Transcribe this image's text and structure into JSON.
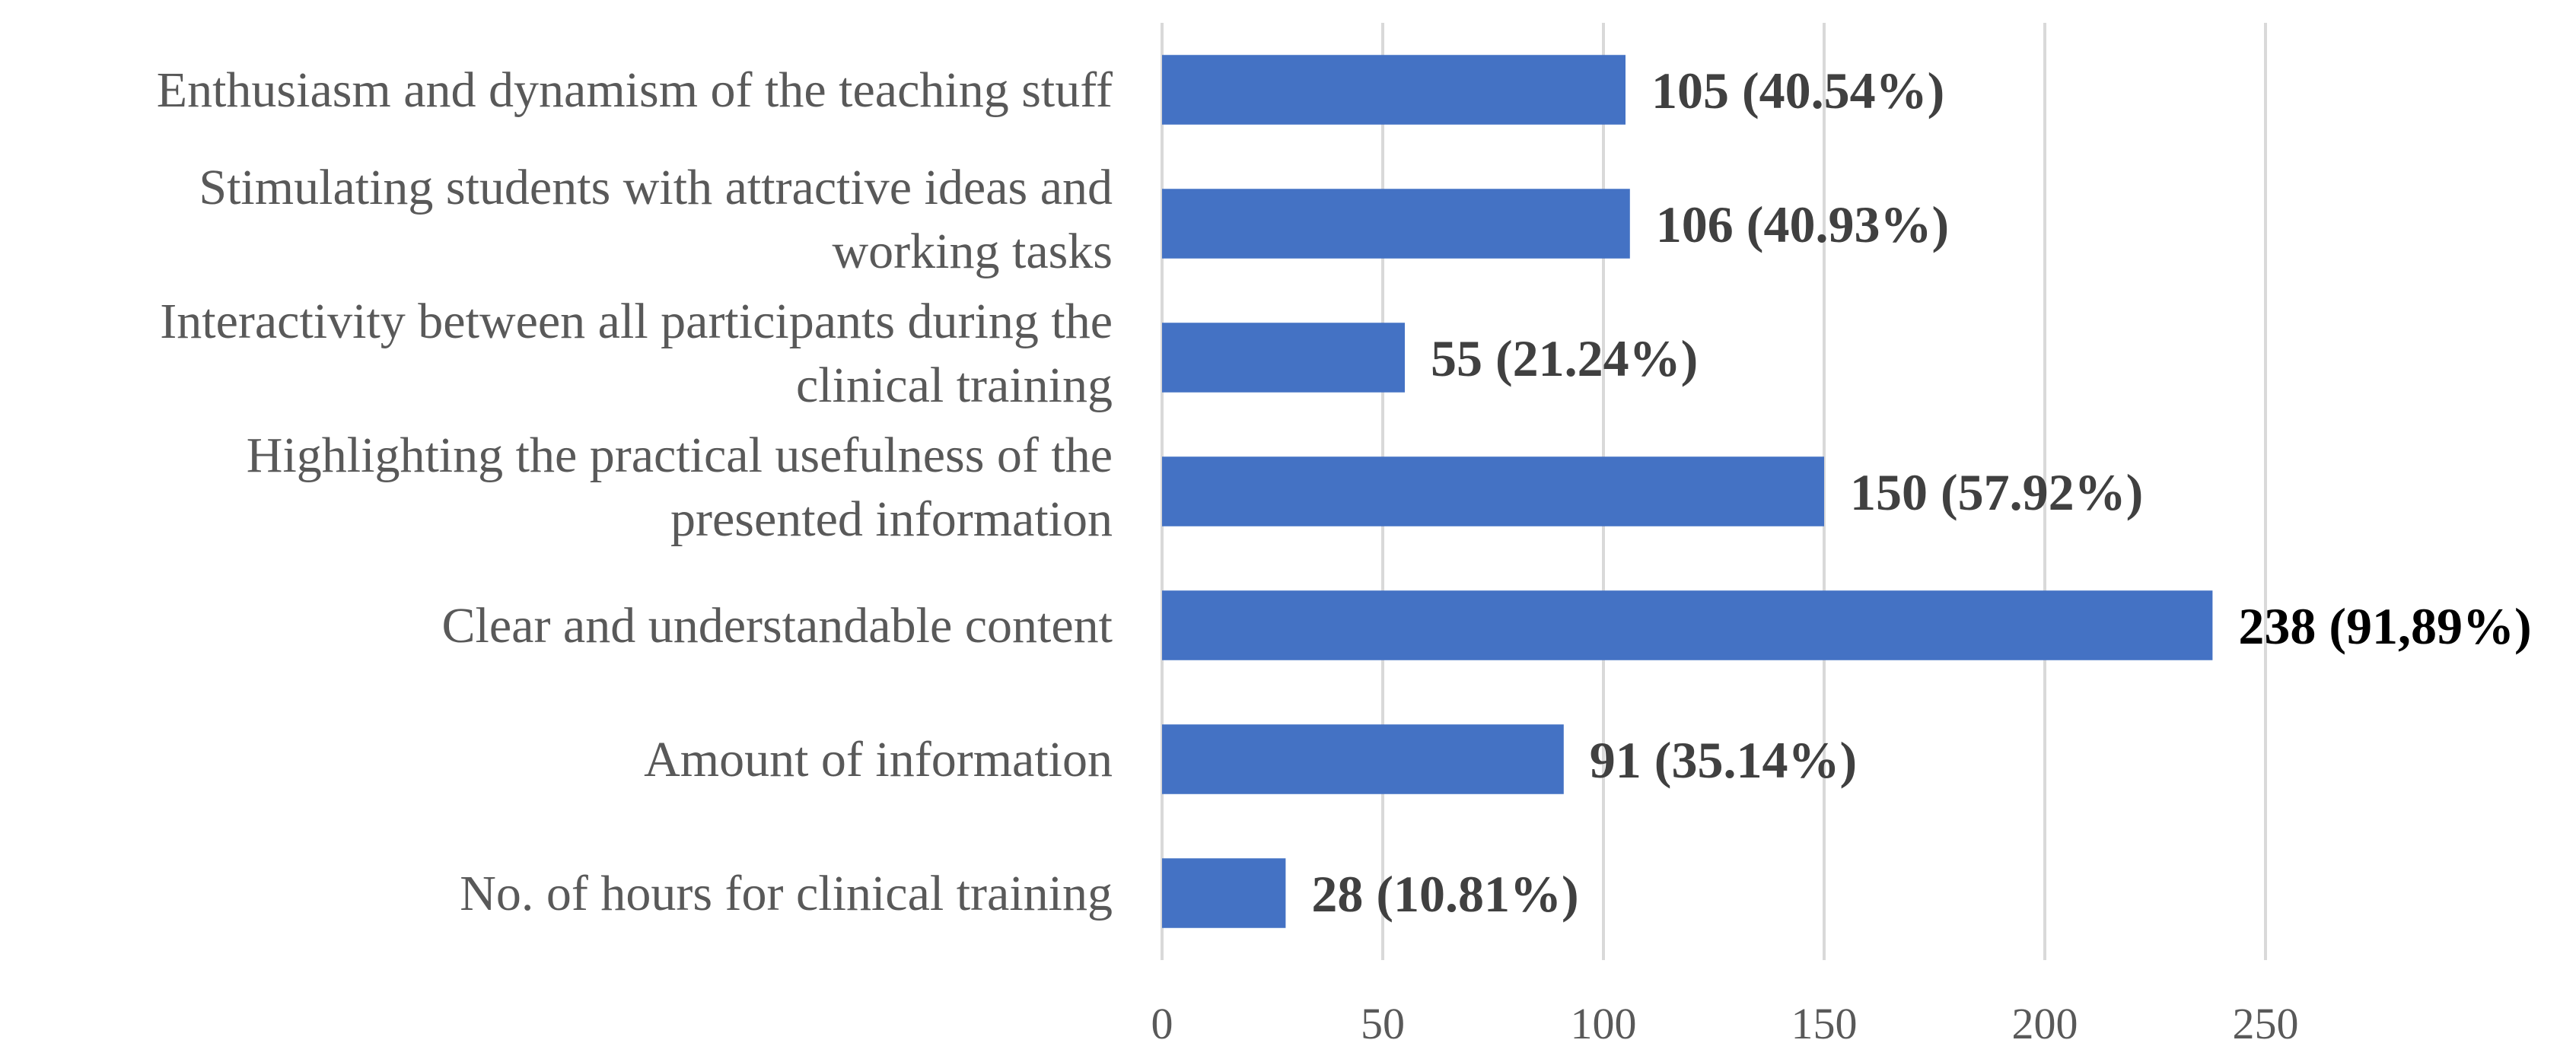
{
  "chart_data": {
    "type": "bar",
    "orientation": "horizontal",
    "title": "",
    "xlabel": "",
    "ylabel": "",
    "xlim": [
      0,
      250
    ],
    "xticks": [
      0,
      50,
      100,
      150,
      200,
      250
    ],
    "grid": true,
    "bar_color": "#4472c4",
    "categories": [
      [
        "Enthusiasm and dynamism of the teaching stuff"
      ],
      [
        "Stimulating students with attractive ideas and",
        "working tasks"
      ],
      [
        "Interactivity between all participants during the",
        "clinical training"
      ],
      [
        "Highlighting the practical usefulness of the",
        "presented information"
      ],
      [
        "Clear and understandable content"
      ],
      [
        "Amount of information"
      ],
      [
        "No. of hours for clinical training"
      ]
    ],
    "values": [
      105,
      106,
      55,
      150,
      238,
      91,
      28
    ],
    "data_labels": [
      "105 (40.54%)",
      "106 (40.93%)",
      "55 (21.24%)",
      "150 (57.92%)",
      "238 (91,89%)",
      "91 (35.14%)",
      "28 (10.81%)"
    ]
  }
}
